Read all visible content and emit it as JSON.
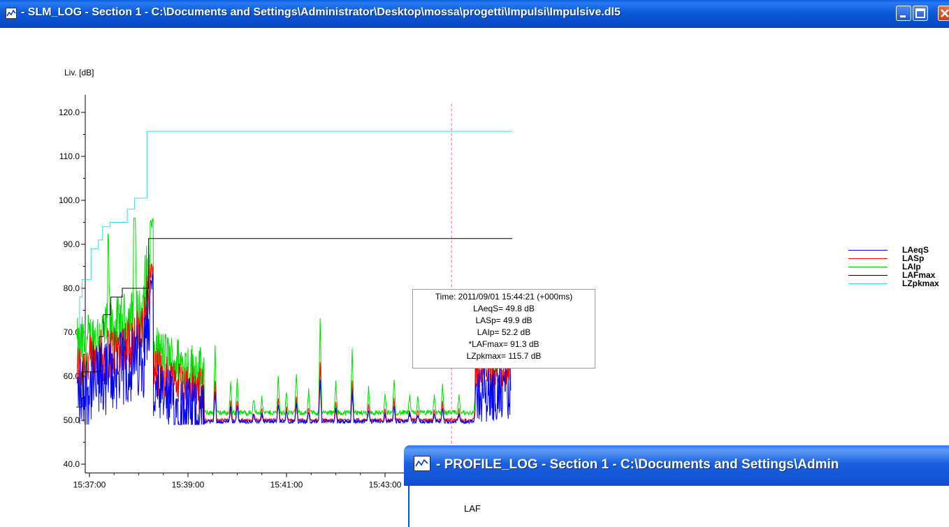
{
  "window": {
    "title": "- SLM_LOG - Section 1 -  C:\\Documents and Settings\\Administrator\\Desktop\\mossa\\progetti\\Impulsi\\Impulsive.dl5"
  },
  "chart_data": {
    "type": "line",
    "ylabel": "Liv. [dB]",
    "ylim": [
      38,
      124
    ],
    "y_ticks": [
      "120.0",
      "110.0",
      "100.0",
      "90.0",
      "80.0",
      "70.0",
      "60.0",
      "50.0",
      "40.0"
    ],
    "x_ticks": [
      "15:37:00",
      "15:39:00",
      "15:41:00",
      "15:43:00"
    ],
    "x_range_seconds_from_first_tick": [
      -16,
      515
    ],
    "cursor_time": "15:44:21",
    "series": [
      {
        "name": "LAeqS",
        "color": "#0000ff"
      },
      {
        "name": "LASp",
        "color": "#ff0000"
      },
      {
        "name": "LAIp",
        "color": "#00e000"
      },
      {
        "name": "LAFmax",
        "color": "#000000",
        "steps": [
          [
            -16,
            53
          ],
          [
            -9,
            55
          ],
          [
            -8,
            61
          ],
          [
            12,
            69
          ],
          [
            17,
            74
          ],
          [
            26,
            78
          ],
          [
            40,
            80
          ],
          [
            72,
            91.3
          ],
          [
            515,
            91.3
          ]
        ]
      },
      {
        "name": "LZpkmax",
        "color": "#33e0e8",
        "steps": [
          [
            -16,
            71
          ],
          [
            -12,
            78
          ],
          [
            -9,
            82
          ],
          [
            2,
            89
          ],
          [
            11,
            91
          ],
          [
            16,
            94
          ],
          [
            25,
            95
          ],
          [
            46,
            98
          ],
          [
            55,
            100.5
          ],
          [
            70,
            115.7
          ],
          [
            515,
            115.7
          ]
        ]
      }
    ]
  },
  "tooltip": {
    "time": "Time: 2011/09/01 15:44:21  (+000ms)",
    "laeqs": "LAeqS= 49.8 dB",
    "lasp": "LASp= 49.9 dB",
    "laip": "LAIp= 52.2 dB",
    "lafmax": "*LAFmax= 91.3 dB",
    "lzpkmax": "LZpkmax= 115.7 dB"
  },
  "legend": [
    {
      "label": "LAeqS",
      "color": "#0000ff"
    },
    {
      "label": "LASp",
      "color": "#ff0000"
    },
    {
      "label": "LAIp",
      "color": "#00e000"
    },
    {
      "label": "LAFmax",
      "color": "#000000"
    },
    {
      "label": "LZpkmax",
      "color": "#33e0e8"
    }
  ],
  "profile_window": {
    "title": "- PROFILE_LOG - Section 1 -  C:\\Documents and Settings\\Admin",
    "body_label": "LAF"
  }
}
